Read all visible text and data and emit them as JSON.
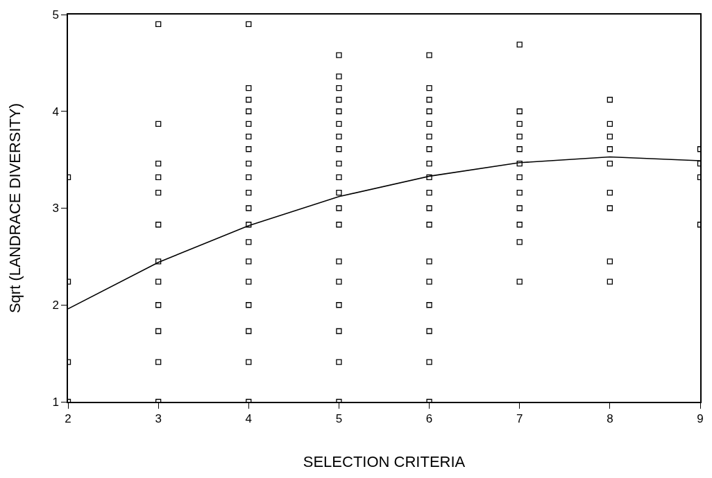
{
  "chart_data": {
    "type": "scatter",
    "xlabel": "SELECTION CRITERIA",
    "ylabel": "Sqrt (LANDRACE DIVERSITY)",
    "xlim": [
      2,
      9
    ],
    "ylim": [
      1,
      5
    ],
    "xticks": [
      2,
      3,
      4,
      5,
      6,
      7,
      8,
      9
    ],
    "yticks": [
      1,
      2,
      3,
      4,
      5
    ],
    "series": [
      {
        "marker": "square",
        "color": "#000000",
        "x": [
          2,
          2,
          2,
          2,
          3,
          3,
          3,
          3,
          3,
          3,
          3,
          3,
          3,
          3,
          3,
          3,
          4,
          4,
          4,
          4,
          4,
          4,
          4,
          4,
          4,
          4,
          4,
          4,
          4,
          4,
          4,
          4,
          4,
          4,
          4,
          5,
          5,
          5,
          5,
          5,
          5,
          5,
          5,
          5,
          5,
          5,
          5,
          5,
          5,
          5,
          5,
          5,
          5,
          5,
          6,
          6,
          6,
          6,
          6,
          6,
          6,
          6,
          6,
          6,
          6,
          6,
          6,
          6,
          6,
          6,
          6,
          6,
          7,
          7,
          7,
          7,
          7,
          7,
          7,
          7,
          7,
          7,
          7,
          7,
          8,
          8,
          8,
          8,
          8,
          8,
          8,
          8,
          8,
          9,
          9,
          9,
          9
        ],
        "values": [
          3.32,
          2.24,
          1.41,
          1.0,
          4.9,
          3.87,
          3.46,
          3.32,
          3.16,
          2.83,
          2.45,
          2.24,
          2.0,
          1.73,
          1.41,
          1.0,
          4.9,
          4.24,
          4.12,
          4.0,
          3.87,
          3.74,
          3.61,
          3.46,
          3.32,
          3.16,
          3.0,
          2.83,
          2.65,
          2.45,
          2.24,
          2.0,
          1.73,
          1.41,
          1.0,
          4.58,
          4.36,
          4.24,
          4.12,
          4.0,
          3.87,
          3.74,
          3.61,
          3.46,
          3.32,
          3.16,
          3.0,
          2.83,
          2.45,
          2.24,
          2.0,
          1.73,
          1.41,
          1.0,
          4.58,
          4.24,
          4.12,
          4.0,
          3.87,
          3.74,
          3.61,
          3.46,
          3.32,
          3.16,
          3.0,
          2.83,
          2.45,
          2.24,
          2.0,
          1.73,
          1.41,
          1.0,
          4.69,
          4.0,
          3.87,
          3.74,
          3.61,
          3.46,
          3.32,
          3.16,
          3.0,
          2.83,
          2.65,
          2.24,
          4.12,
          3.87,
          3.74,
          3.61,
          3.46,
          3.16,
          3.0,
          2.45,
          2.24,
          3.61,
          3.46,
          3.32,
          2.83
        ]
      },
      {
        "type": "line",
        "marker": "none",
        "line_style": "solid",
        "color": "#000000",
        "x": [
          2,
          3,
          4,
          5,
          6,
          7,
          8,
          9
        ],
        "values": [
          1.96,
          2.44,
          2.82,
          3.12,
          3.33,
          3.47,
          3.53,
          3.49
        ]
      }
    ]
  }
}
